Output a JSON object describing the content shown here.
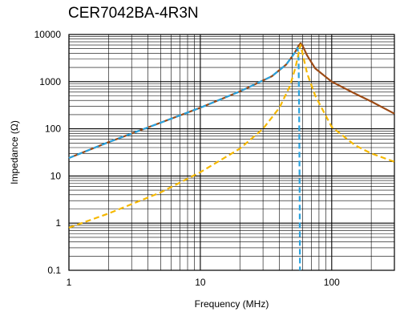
{
  "chart_data": {
    "type": "line",
    "title": "CER7042BA-4R3N",
    "xlabel": "Frequency (MHz)",
    "ylabel": "Impedance (Ω)",
    "x_scale": "log",
    "y_scale": "log",
    "xlim": [
      1,
      300
    ],
    "ylim": [
      0.1,
      10000
    ],
    "x_ticks": [
      {
        "value": 1,
        "label": "1"
      },
      {
        "value": 10,
        "label": "10"
      },
      {
        "value": 100,
        "label": "100"
      }
    ],
    "y_ticks": [
      {
        "value": 0.1,
        "label": "0.1"
      },
      {
        "value": 1,
        "label": "1"
      },
      {
        "value": 10,
        "label": "10"
      },
      {
        "value": 100,
        "label": "100"
      },
      {
        "value": 1000,
        "label": "1000"
      },
      {
        "value": 10000,
        "label": "10000"
      }
    ],
    "grid": true,
    "legend": "none",
    "series": [
      {
        "color": "#9c4a14",
        "style": "solid",
        "x": [
          1,
          2,
          5,
          10,
          20,
          35,
          45,
          52,
          56,
          58,
          60,
          65,
          75,
          100,
          150,
          200,
          300
        ],
        "y": [
          24,
          52,
          135,
          280,
          620,
          1300,
          2300,
          4000,
          5800,
          6500,
          5800,
          3600,
          1900,
          1000,
          560,
          380,
          210
        ]
      },
      {
        "color": "#29a3e0",
        "style": "dashed",
        "x": [
          1,
          2,
          5,
          10,
          20,
          35,
          45,
          52,
          55,
          56,
          56.5,
          57,
          57.3
        ],
        "y": [
          24,
          52,
          135,
          280,
          620,
          1300,
          2300,
          4000,
          5200,
          3000,
          200,
          5,
          0.1
        ]
      },
      {
        "color": "#f5b800",
        "style": "dashed",
        "x": [
          1,
          2,
          5,
          10,
          20,
          30,
          40,
          48,
          53,
          56,
          58,
          60,
          65,
          75,
          100,
          150,
          200,
          300
        ],
        "y": [
          0.8,
          1.6,
          4.5,
          12,
          38,
          100,
          280,
          800,
          2000,
          4000,
          6000,
          4000,
          1500,
          500,
          110,
          45,
          30,
          20
        ]
      }
    ]
  }
}
